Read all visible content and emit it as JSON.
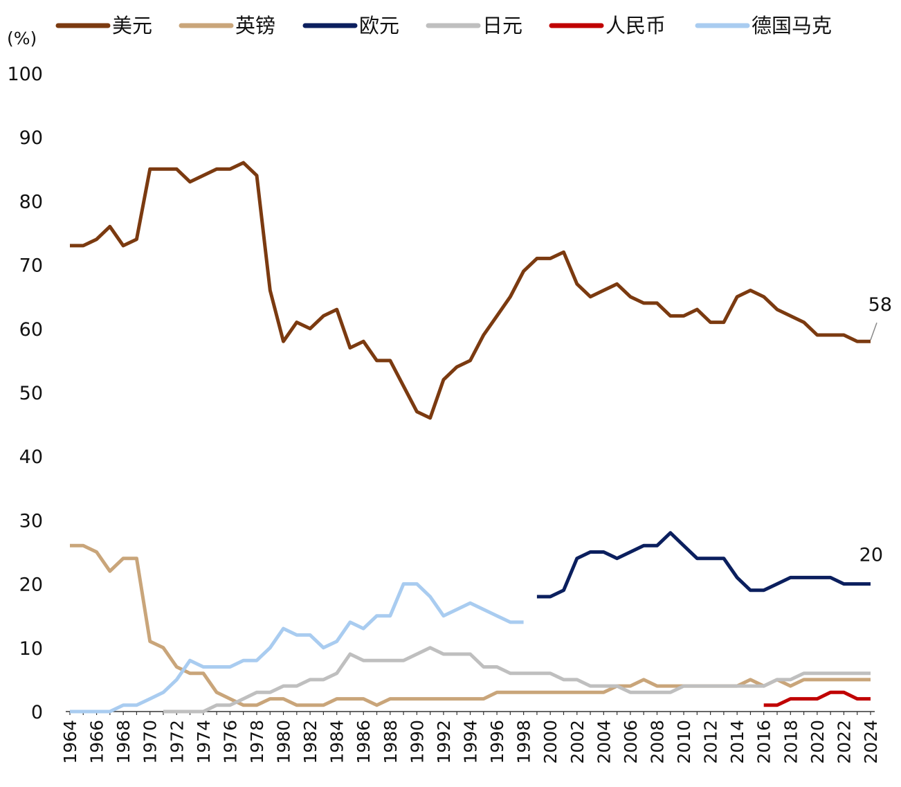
{
  "chart_data": {
    "type": "line",
    "unit_label": "(%)",
    "x": [
      1964,
      1965,
      1966,
      1967,
      1968,
      1969,
      1970,
      1971,
      1972,
      1973,
      1974,
      1975,
      1976,
      1977,
      1978,
      1979,
      1980,
      1981,
      1982,
      1983,
      1984,
      1985,
      1986,
      1987,
      1988,
      1989,
      1990,
      1991,
      1992,
      1993,
      1994,
      1995,
      1996,
      1997,
      1998,
      1999,
      2000,
      2001,
      2002,
      2003,
      2004,
      2005,
      2006,
      2007,
      2008,
      2009,
      2010,
      2011,
      2012,
      2013,
      2014,
      2015,
      2016,
      2017,
      2018,
      2019,
      2020,
      2021,
      2022,
      2023,
      2024
    ],
    "x_tick_labels": [
      "1964",
      "1966",
      "1968",
      "1970",
      "1972",
      "1974",
      "1976",
      "1978",
      "1980",
      "1982",
      "1984",
      "1986",
      "1988",
      "1990",
      "1992",
      "1994",
      "1996",
      "1998",
      "2000",
      "2002",
      "2004",
      "2006",
      "2008",
      "2010",
      "2012",
      "2014",
      "2016",
      "2018",
      "2020",
      "2022",
      "2024"
    ],
    "ylim": [
      0,
      100
    ],
    "y_ticks": [
      0,
      10,
      20,
      30,
      40,
      50,
      60,
      70,
      80,
      90,
      100
    ],
    "legend_position": "top",
    "grid": false,
    "series": [
      {
        "name": "美元",
        "color": "#7B3A10",
        "values": [
          73,
          73,
          74,
          76,
          73,
          74,
          85,
          85,
          85,
          83,
          84,
          85,
          85,
          86,
          84,
          66,
          58,
          61,
          60,
          62,
          63,
          57,
          58,
          55,
          55,
          51,
          47,
          46,
          52,
          54,
          55,
          59,
          62,
          65,
          69,
          71,
          71,
          72,
          67,
          65,
          66,
          67,
          65,
          64,
          64,
          62,
          62,
          63,
          61,
          61,
          65,
          66,
          65,
          63,
          62,
          61,
          59,
          59,
          59,
          58,
          58
        ]
      },
      {
        "name": "英镑",
        "color": "#C9A57A",
        "values": [
          26,
          26,
          25,
          22,
          24,
          24,
          11,
          10,
          7,
          6,
          6,
          3,
          2,
          1,
          1,
          2,
          2,
          1,
          1,
          1,
          2,
          2,
          2,
          1,
          2,
          2,
          2,
          2,
          2,
          2,
          2,
          2,
          3,
          3,
          3,
          3,
          3,
          3,
          3,
          3,
          3,
          4,
          4,
          5,
          4,
          4,
          4,
          4,
          4,
          4,
          4,
          5,
          4,
          5,
          4,
          5,
          5,
          5,
          5,
          5,
          5
        ]
      },
      {
        "name": "欧元",
        "color": "#0B1F5E",
        "values": [
          null,
          null,
          null,
          null,
          null,
          null,
          null,
          null,
          null,
          null,
          null,
          null,
          null,
          null,
          null,
          null,
          null,
          null,
          null,
          null,
          null,
          null,
          null,
          null,
          null,
          null,
          null,
          null,
          null,
          null,
          null,
          null,
          null,
          null,
          null,
          18,
          18,
          19,
          24,
          25,
          25,
          24,
          25,
          26,
          26,
          28,
          26,
          24,
          24,
          24,
          21,
          19,
          19,
          20,
          21,
          21,
          21,
          21,
          20,
          20,
          20
        ]
      },
      {
        "name": "日元",
        "color": "#BFBFBF",
        "values": [
          null,
          null,
          null,
          null,
          null,
          null,
          null,
          0,
          0,
          0,
          0,
          1,
          1,
          2,
          3,
          3,
          4,
          4,
          5,
          5,
          6,
          9,
          8,
          8,
          8,
          8,
          9,
          10,
          9,
          9,
          9,
          7,
          7,
          6,
          6,
          6,
          6,
          5,
          5,
          4,
          4,
          4,
          3,
          3,
          3,
          3,
          4,
          4,
          4,
          4,
          4,
          4,
          4,
          5,
          5,
          6,
          6,
          6,
          6,
          6,
          6
        ]
      },
      {
        "name": "人民币",
        "color": "#C00000",
        "values": [
          null,
          null,
          null,
          null,
          null,
          null,
          null,
          null,
          null,
          null,
          null,
          null,
          null,
          null,
          null,
          null,
          null,
          null,
          null,
          null,
          null,
          null,
          null,
          null,
          null,
          null,
          null,
          null,
          null,
          null,
          null,
          null,
          null,
          null,
          null,
          null,
          null,
          null,
          null,
          null,
          null,
          null,
          null,
          null,
          null,
          null,
          null,
          null,
          null,
          null,
          null,
          null,
          1,
          1,
          2,
          2,
          2,
          3,
          3,
          2,
          2
        ]
      },
      {
        "name": "德国马克",
        "color": "#A9CCF0",
        "values": [
          0,
          0,
          0,
          0,
          1,
          1,
          2,
          3,
          5,
          8,
          7,
          7,
          7,
          8,
          8,
          10,
          13,
          12,
          12,
          10,
          11,
          14,
          13,
          15,
          15,
          20,
          20,
          18,
          15,
          16,
          17,
          16,
          15,
          14,
          14,
          null,
          null,
          null,
          null,
          null,
          null,
          null,
          null,
          null,
          null,
          null,
          null,
          null,
          null,
          null,
          null,
          null,
          null,
          null,
          null,
          null,
          null,
          null,
          null,
          null,
          null
        ]
      }
    ],
    "annotations": [
      {
        "series": "美元",
        "text": "58"
      },
      {
        "series": "欧元",
        "text": "20"
      }
    ]
  }
}
